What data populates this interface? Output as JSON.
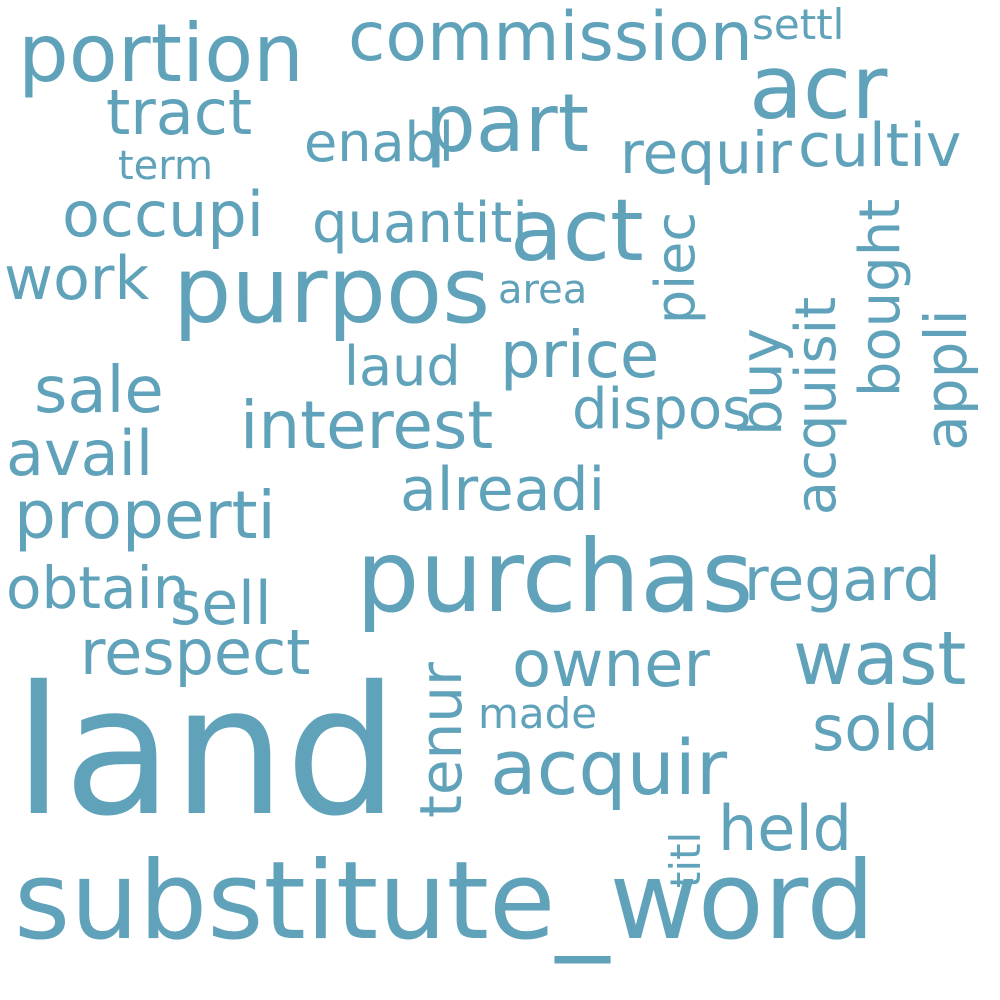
{
  "colors": {
    "background": "#ffffff",
    "word": "#5fa2ba"
  },
  "words": [
    {
      "text": "land",
      "weight": 1.0
    },
    {
      "text": "substitute_word",
      "weight": 0.95
    },
    {
      "text": "purchas",
      "weight": 0.75
    },
    {
      "text": "purpos",
      "weight": 0.68
    },
    {
      "text": "acr",
      "weight": 0.66
    },
    {
      "text": "portion",
      "weight": 0.6
    },
    {
      "text": "act",
      "weight": 0.6
    },
    {
      "text": "part",
      "weight": 0.58
    },
    {
      "text": "acquir",
      "weight": 0.58
    },
    {
      "text": "commission",
      "weight": 0.52
    },
    {
      "text": "wast",
      "weight": 0.52
    },
    {
      "text": "properti",
      "weight": 0.5
    },
    {
      "text": "interest",
      "weight": 0.5
    },
    {
      "text": "owner",
      "weight": 0.48
    },
    {
      "text": "price",
      "weight": 0.48
    },
    {
      "text": "respect",
      "weight": 0.48
    },
    {
      "text": "sale",
      "weight": 0.46
    },
    {
      "text": "avail",
      "weight": 0.46
    },
    {
      "text": "held",
      "weight": 0.46
    },
    {
      "text": "regard",
      "weight": 0.44
    },
    {
      "text": "sold",
      "weight": 0.44
    },
    {
      "text": "sell",
      "weight": 0.44
    },
    {
      "text": "alreadi",
      "weight": 0.44
    },
    {
      "text": "tract",
      "weight": 0.44
    },
    {
      "text": "occupi",
      "weight": 0.44
    },
    {
      "text": "work",
      "weight": 0.44
    },
    {
      "text": "obtain",
      "weight": 0.44
    },
    {
      "text": "quantiti",
      "weight": 0.44
    },
    {
      "text": "cultiv",
      "weight": 0.42
    },
    {
      "text": "requir",
      "weight": 0.42
    },
    {
      "text": "dispos",
      "weight": 0.42
    },
    {
      "text": "laud",
      "weight": 0.42
    },
    {
      "text": "enabl",
      "weight": 0.4
    },
    {
      "text": "settl",
      "weight": 0.4
    },
    {
      "text": "made",
      "weight": 0.4
    },
    {
      "text": "area",
      "weight": 0.4
    },
    {
      "text": "term",
      "weight": 0.38
    },
    {
      "text": "piec",
      "weight": 0.36
    },
    {
      "text": "buy",
      "weight": 0.36
    },
    {
      "text": "acquisit",
      "weight": 0.32
    },
    {
      "text": "bought",
      "weight": 0.32
    },
    {
      "text": "appli",
      "weight": 0.3
    },
    {
      "text": "tenur",
      "weight": 0.3
    },
    {
      "text": "titl",
      "weight": 0.3
    }
  ]
}
